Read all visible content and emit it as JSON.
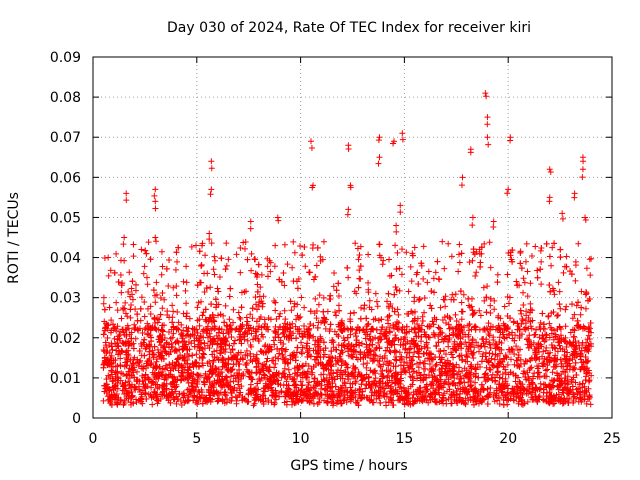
{
  "chart_data": {
    "type": "scatter",
    "title": "Day 030 of 2024, Rate Of TEC Index for receiver kiri",
    "xlabel": "GPS time / hours",
    "ylabel": "ROTI / TECUs",
    "xlim": [
      0,
      25
    ],
    "ylim": [
      0,
      0.09
    ],
    "xticks": [
      0,
      5,
      10,
      15,
      20,
      25
    ],
    "xtick_labels": [
      "0",
      "5",
      "10",
      "15",
      "20",
      "25"
    ],
    "yticks": [
      0,
      0.01,
      0.02,
      0.03,
      0.04,
      0.05,
      0.06,
      0.07,
      0.08,
      0.09
    ],
    "ytick_labels": [
      "0",
      "0.01",
      "0.02",
      "0.03",
      "0.04",
      "0.05",
      "0.06",
      "0.07",
      "0.08",
      "0.09"
    ],
    "grid": true,
    "marker": "+",
    "series": [
      {
        "name": "ROTI",
        "color": "#ff0000",
        "x_range": [
          0.5,
          24.0
        ],
        "base_band": [
          0.004,
          0.022
        ],
        "typical_max": 0.03,
        "notable_points": [
          {
            "x": 1.6,
            "y": 0.056
          },
          {
            "x": 1.5,
            "y": 0.045
          },
          {
            "x": 2.6,
            "y": 0.035
          },
          {
            "x": 3.0,
            "y": 0.057
          },
          {
            "x": 3.0,
            "y": 0.054
          },
          {
            "x": 3.0,
            "y": 0.045
          },
          {
            "x": 5.7,
            "y": 0.064
          },
          {
            "x": 5.7,
            "y": 0.057
          },
          {
            "x": 5.6,
            "y": 0.046
          },
          {
            "x": 7.6,
            "y": 0.049
          },
          {
            "x": 8.9,
            "y": 0.05
          },
          {
            "x": 10.5,
            "y": 0.069
          },
          {
            "x": 10.6,
            "y": 0.058
          },
          {
            "x": 12.3,
            "y": 0.068
          },
          {
            "x": 12.3,
            "y": 0.052
          },
          {
            "x": 12.4,
            "y": 0.058
          },
          {
            "x": 13.8,
            "y": 0.07
          },
          {
            "x": 13.8,
            "y": 0.065
          },
          {
            "x": 14.5,
            "y": 0.069
          },
          {
            "x": 14.9,
            "y": 0.071
          },
          {
            "x": 14.8,
            "y": 0.053
          },
          {
            "x": 14.6,
            "y": 0.048
          },
          {
            "x": 17.8,
            "y": 0.06
          },
          {
            "x": 18.2,
            "y": 0.067
          },
          {
            "x": 18.3,
            "y": 0.05
          },
          {
            "x": 18.9,
            "y": 0.081
          },
          {
            "x": 19.0,
            "y": 0.075
          },
          {
            "x": 19.0,
            "y": 0.07
          },
          {
            "x": 19.3,
            "y": 0.049
          },
          {
            "x": 20.1,
            "y": 0.07
          },
          {
            "x": 20.0,
            "y": 0.057
          },
          {
            "x": 22.0,
            "y": 0.062
          },
          {
            "x": 22.0,
            "y": 0.055
          },
          {
            "x": 22.6,
            "y": 0.051
          },
          {
            "x": 23.2,
            "y": 0.056
          },
          {
            "x": 23.6,
            "y": 0.065
          },
          {
            "x": 23.6,
            "y": 0.062
          },
          {
            "x": 23.7,
            "y": 0.05
          }
        ]
      }
    ]
  }
}
